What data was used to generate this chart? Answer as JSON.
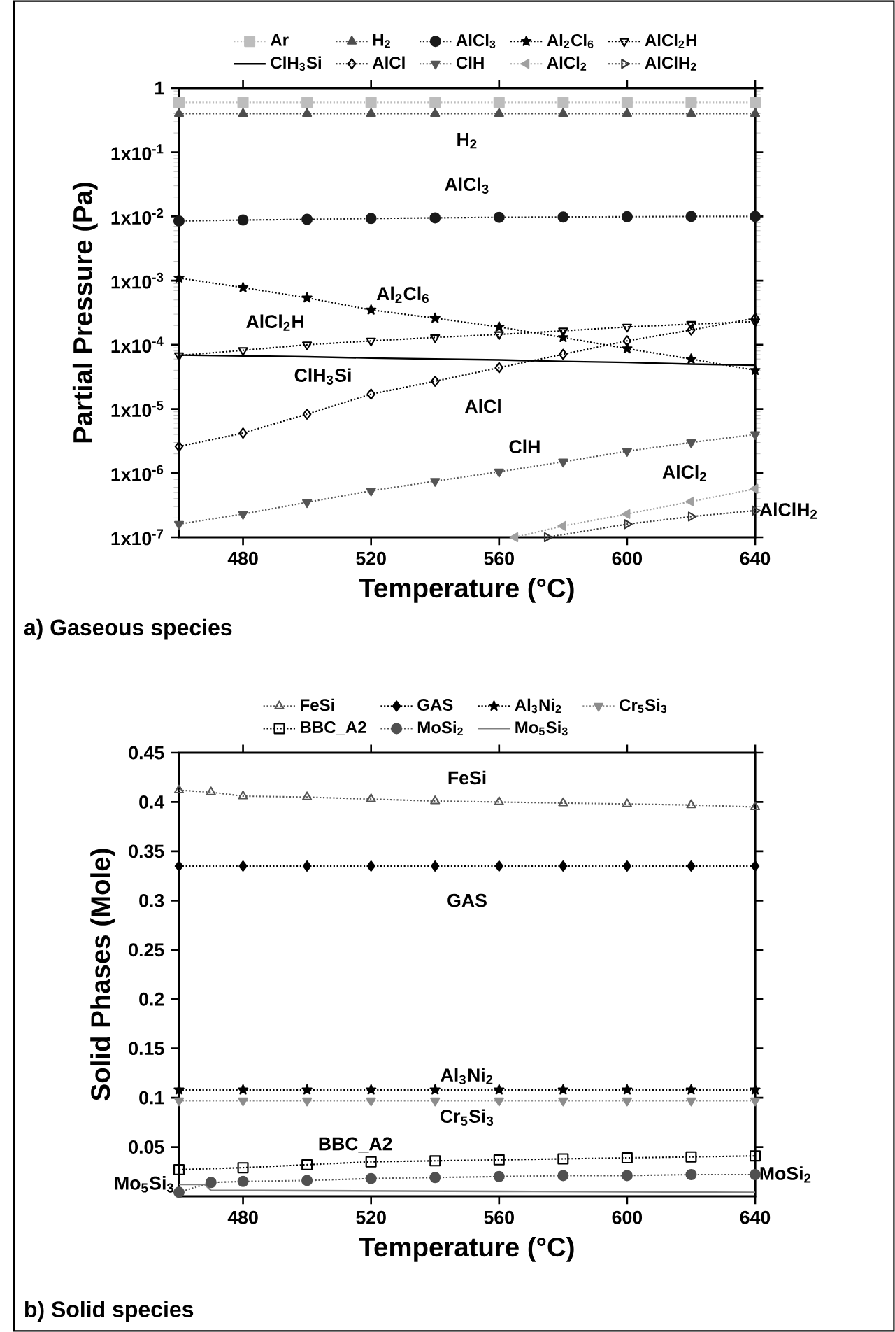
{
  "chart_data": [
    {
      "type": "line",
      "xlabel": "Temperature (°C)",
      "ylabel": "Partial Pressure (Pa)",
      "log": "y",
      "legend": "top",
      "xlim": [
        460,
        640
      ],
      "xticks": [
        480,
        520,
        560,
        600,
        640
      ],
      "ylim": [
        1e-07,
        1
      ],
      "yticks": [
        {
          "value": 1e-07,
          "label": "1x10$^{-7}$"
        },
        {
          "value": 1e-06,
          "label": "1x10$^{-6}$"
        },
        {
          "value": 1e-05,
          "label": "1x10$^{-5}$"
        },
        {
          "value": 0.0001,
          "label": "1x10$^{-4}$"
        },
        {
          "value": 0.001,
          "label": "1x10$^{-3}$"
        },
        {
          "value": 0.01,
          "label": "1x10$^{-2}$"
        },
        {
          "value": 0.1,
          "label": "1x10$^{-1}$"
        },
        1
      ],
      "x": [
        460,
        480,
        500,
        520,
        540,
        560,
        580,
        600,
        620,
        640
      ],
      "series": [
        {
          "name": "Ar",
          "color": "#bdbdbd",
          "marker": "square",
          "line_style": "dotted",
          "values": [
            0.6,
            0.6,
            0.6,
            0.6,
            0.6,
            0.6,
            0.6,
            0.6,
            0.6,
            0.6
          ]
        },
        {
          "name": "H$_{2}$",
          "color": "#4d4d4d",
          "marker": "triangle",
          "line_style": "dotted",
          "values": [
            0.4,
            0.4,
            0.4,
            0.4,
            0.4,
            0.4,
            0.4,
            0.4,
            0.4,
            0.4
          ]
        },
        {
          "name": "AlCl$_{3}$",
          "color": "#1a1a1a",
          "marker": "circle",
          "line_style": "dotted",
          "values": [
            0.0085,
            0.0088,
            0.009,
            0.0093,
            0.0095,
            0.0097,
            0.0098,
            0.0099,
            0.01,
            0.01
          ]
        },
        {
          "name": "Al$_{2}$Cl$_{6}$",
          "color": "#000000",
          "marker": "star",
          "line_style": "dotted",
          "values": [
            0.0011,
            0.00078,
            0.00054,
            0.00035,
            0.00026,
            0.00019,
            0.00013,
            8.7e-05,
            6e-05,
            4e-05
          ]
        },
        {
          "name": "AlCl$_{2}$H",
          "color": "#000000",
          "marker": "triangle-down-open",
          "line_style": "dotted",
          "values": [
            6.8e-05,
            8.2e-05,
            0.0001,
            0.000115,
            0.00013,
            0.000145,
            0.000165,
            0.00019,
            0.00021,
            0.00023
          ]
        },
        {
          "name": "ClH$_{3}$Si",
          "color": "#000000",
          "marker": "none",
          "line_style": "solid",
          "values": [
            6.9e-05,
            6.7e-05,
            6.5e-05,
            6.2e-05,
            6e-05,
            5.8e-05,
            5.5e-05,
            5.3e-05,
            5e-05,
            4.8e-05
          ]
        },
        {
          "name": "AlCl",
          "color": "#000000",
          "marker": "diamond-open",
          "line_style": "dotted",
          "values": [
            2.6e-06,
            4.2e-06,
            8.3e-06,
            1.7e-05,
            2.7e-05,
            4.4e-05,
            7.1e-05,
            0.000115,
            0.00017,
            0.00026
          ]
        },
        {
          "name": "ClH",
          "color": "#555555",
          "marker": "triangle-down",
          "line_style": "dotted",
          "values": [
            1.6e-07,
            2.3e-07,
            3.5e-07,
            5.3e-07,
            7.5e-07,
            1.05e-06,
            1.5e-06,
            2.2e-06,
            3e-06,
            4e-06
          ]
        },
        {
          "name": "AlCl$_{2}$",
          "color": "#a0a0a0",
          "marker": "triangle-left",
          "line_style": "dotted",
          "x": [
            565,
            580,
            600,
            620,
            640
          ],
          "values": [
            1e-07,
            1.5e-07,
            2.3e-07,
            3.6e-07,
            5.7e-07
          ]
        },
        {
          "name": "AlClH$_{2}$",
          "color": "#333333",
          "marker": "triangle-right-open",
          "line_style": "dotted",
          "x": [
            575,
            600,
            620,
            640
          ],
          "values": [
            1e-07,
            1.6e-07,
            2.1e-07,
            2.6e-07
          ]
        }
      ],
      "annotations": [
        "H$_{2}$",
        "AlCl$_{3}$",
        "Al$_{2}$Cl$_{6}$",
        "AlCl$_{2}$H",
        "ClH$_{3}$Si",
        "AlCl",
        "ClH",
        "AlCl$_{2}$",
        "AlClH$_{2}$",
        "a) Gaseous species"
      ]
    },
    {
      "type": "line",
      "xlabel": "Temperature (°C)",
      "ylabel": "Solid Phases (Mole)",
      "legend": "top",
      "xlim": [
        460,
        640
      ],
      "xticks": [
        480,
        520,
        560,
        600,
        640
      ],
      "ylim": [
        0,
        0.45
      ],
      "yticks": [
        0.05,
        0.1,
        0.15,
        0.2,
        0.25,
        0.3,
        0.35,
        0.4,
        0.45
      ],
      "x": [
        460,
        480,
        500,
        520,
        540,
        560,
        580,
        600,
        620,
        640
      ],
      "series": [
        {
          "name": "FeSi",
          "color": "#555555",
          "marker": "triangle-open",
          "line_style": "dotted",
          "x": [
            460,
            470,
            480,
            500,
            520,
            540,
            560,
            580,
            600,
            620,
            640
          ],
          "values": [
            0.412,
            0.41,
            0.406,
            0.405,
            0.403,
            0.401,
            0.4,
            0.399,
            0.398,
            0.397,
            0.395
          ]
        },
        {
          "name": "GAS",
          "color": "#000000",
          "marker": "diamond",
          "line_style": "dotted",
          "values": [
            0.335,
            0.335,
            0.335,
            0.335,
            0.335,
            0.335,
            0.335,
            0.335,
            0.335,
            0.335
          ]
        },
        {
          "name": "Al$_{3}$Ni$_{2}$",
          "color": "#000000",
          "marker": "star",
          "line_style": "dotted",
          "values": [
            0.108,
            0.108,
            0.108,
            0.108,
            0.108,
            0.108,
            0.108,
            0.108,
            0.108,
            0.108
          ]
        },
        {
          "name": "Cr$_{5}$Si$_{3}$",
          "color": "#8c8c8c",
          "marker": "triangle-down",
          "line_style": "dotted",
          "values": [
            0.097,
            0.097,
            0.097,
            0.097,
            0.097,
            0.097,
            0.097,
            0.097,
            0.097,
            0.097
          ]
        },
        {
          "name": "BBC_A2",
          "color": "#000000",
          "marker": "square-open",
          "line_style": "dotted",
          "values": [
            0.027,
            0.029,
            0.032,
            0.035,
            0.036,
            0.037,
            0.038,
            0.039,
            0.04,
            0.041
          ]
        },
        {
          "name": "MoSi$_{2}$",
          "color": "#505050",
          "marker": "circle",
          "line_style": "dotted",
          "x": [
            460,
            470,
            480,
            500,
            520,
            540,
            560,
            580,
            600,
            620,
            640
          ],
          "values": [
            0.004,
            0.014,
            0.015,
            0.016,
            0.018,
            0.019,
            0.02,
            0.021,
            0.021,
            0.022,
            0.022
          ]
        },
        {
          "name": "Mo$_{5}$Si$_{3}$",
          "color": "#808080",
          "marker": "none",
          "line_style": "solid",
          "x": [
            460,
            468,
            470,
            560,
            640
          ],
          "values": [
            0.012,
            0.012,
            0.006,
            0.005,
            0.004
          ]
        }
      ],
      "annotations": [
        "FeSi",
        "GAS",
        "Al$_{3}$Ni$_{2}$",
        "Cr$_{5}$Si$_{3}$",
        "BBC_A2",
        "Mo$_{5}$Si$_{3}$",
        "MoSi$_{2}$",
        "b) Solid species"
      ]
    }
  ]
}
